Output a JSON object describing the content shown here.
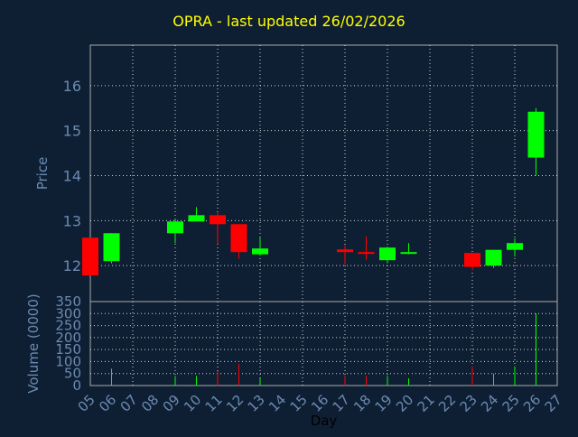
{
  "chart_data": {
    "type": "candlestick",
    "title": "OPRA - last updated 26/02/2026",
    "xlabel": "Day",
    "x_ticks": [
      "05",
      "06",
      "07",
      "08",
      "09",
      "10",
      "11",
      "12",
      "13",
      "14",
      "15",
      "16",
      "17",
      "18",
      "19",
      "20",
      "21",
      "22",
      "23",
      "24",
      "25",
      "26",
      "27"
    ],
    "price_panel": {
      "ylabel": "Price",
      "ylim": [
        11.2,
        16.9
      ],
      "y_ticks": [
        "12",
        "13",
        "14",
        "15",
        "16"
      ],
      "y_tick_values": [
        12,
        13,
        14,
        15,
        16
      ]
    },
    "volume_panel": {
      "ylabel": "Volume (0000)",
      "ylim": [
        0,
        350
      ],
      "y_ticks": [
        "0",
        "50",
        "100",
        "150",
        "200",
        "250",
        "300",
        "350"
      ],
      "y_tick_values": [
        0,
        50,
        100,
        150,
        200,
        250,
        300,
        350
      ]
    },
    "candles": [
      {
        "day": 5,
        "open": 12.62,
        "close": 11.78,
        "high": 12.62,
        "low": 11.78,
        "volume": 0
      },
      {
        "day": 6,
        "open": 12.1,
        "close": 12.72,
        "high": 12.72,
        "low": 12.05,
        "volume": 70
      },
      {
        "day": 9,
        "open": 12.72,
        "close": 12.98,
        "high": 13.05,
        "low": 12.5,
        "volume": 40
      },
      {
        "day": 10,
        "open": 12.98,
        "close": 13.12,
        "high": 13.3,
        "low": 12.98,
        "volume": 40
      },
      {
        "day": 11,
        "open": 13.12,
        "close": 12.92,
        "high": 13.18,
        "low": 12.48,
        "volume": 60
      },
      {
        "day": 12,
        "open": 12.92,
        "close": 12.3,
        "high": 12.92,
        "low": 12.15,
        "volume": 90
      },
      {
        "day": 13,
        "open": 12.25,
        "close": 12.38,
        "high": 12.62,
        "low": 12.22,
        "volume": 30
      },
      {
        "day": 17,
        "open": 12.36,
        "close": 12.3,
        "high": 12.45,
        "low": 12.02,
        "volume": 40
      },
      {
        "day": 18,
        "open": 12.3,
        "close": 12.26,
        "high": 12.65,
        "low": 12.12,
        "volume": 40
      },
      {
        "day": 19,
        "open": 12.12,
        "close": 12.4,
        "high": 12.42,
        "low": 12.05,
        "volume": 40
      },
      {
        "day": 20,
        "open": 12.27,
        "close": 12.3,
        "high": 12.5,
        "low": 12.25,
        "volume": 30
      },
      {
        "day": 23,
        "open": 12.28,
        "close": 11.97,
        "high": 12.28,
        "low": 11.9,
        "volume": 80
      },
      {
        "day": 24,
        "open": 12.0,
        "close": 12.35,
        "high": 12.35,
        "low": 11.95,
        "volume": 50
      },
      {
        "day": 25,
        "open": 12.35,
        "close": 12.5,
        "high": 12.6,
        "low": 12.2,
        "volume": 80
      },
      {
        "day": 26,
        "open": 14.4,
        "close": 15.42,
        "high": 15.5,
        "low": 14.0,
        "volume": 300
      }
    ],
    "colors": {
      "background": "#0f1f33",
      "title": "#ffff00",
      "axis_text": "#6a8ab2",
      "up": "#00ff00",
      "down": "#ff0000",
      "grid": "#ffffff",
      "frame": "#aaaaaa"
    }
  }
}
